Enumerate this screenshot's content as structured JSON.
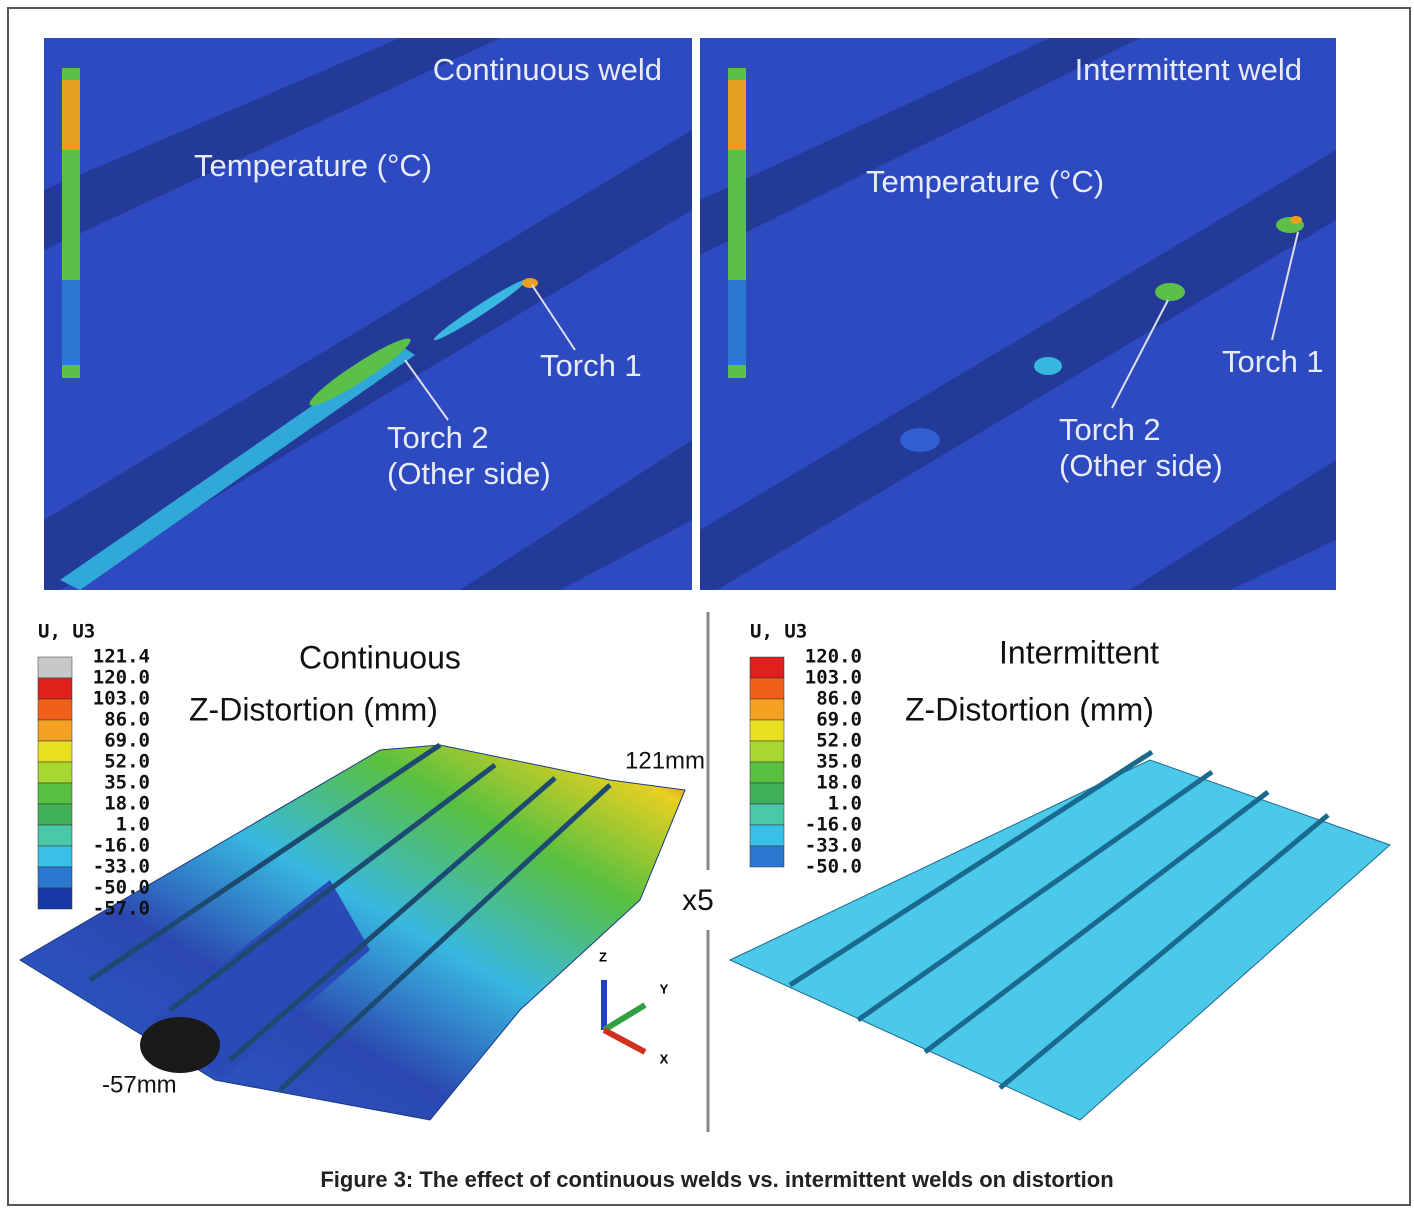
{
  "top_left": {
    "title": "Continuous weld",
    "label": "Temperature (°C)",
    "torch1": "Torch 1",
    "torch2": "Torch 2",
    "torch2_note": "(Other side)"
  },
  "top_right": {
    "title": "Intermittent weld",
    "label": "Temperature (°C)",
    "torch1": "Torch 1",
    "torch2": "Torch 2",
    "torch2_note": "(Other side)"
  },
  "bottom_left": {
    "legend_title": "U, U3",
    "legend": [
      "121.4",
      "120.0",
      "103.0",
      "86.0",
      "69.0",
      "52.0",
      "35.0",
      "18.0",
      "1.0",
      "-16.0",
      "-33.0",
      "-50.0",
      "-57.0"
    ],
    "title": "Continuous",
    "subtitle": "Z-Distortion (mm)",
    "max_label": "121mm",
    "min_label": "-57mm"
  },
  "scale_factor": "x5",
  "triad": {
    "z": "Z",
    "y": "Y",
    "x": "X"
  },
  "bottom_right": {
    "legend_title": "U, U3",
    "legend": [
      "120.0",
      "103.0",
      "86.0",
      "69.0",
      "52.0",
      "35.0",
      "18.0",
      "1.0",
      "-16.0",
      "-33.0",
      "-50.0"
    ],
    "title": "Intermittent",
    "subtitle": "Z-Distortion (mm)"
  },
  "caption": "Figure 3: The effect of continuous welds vs. intermittent welds on distortion"
}
